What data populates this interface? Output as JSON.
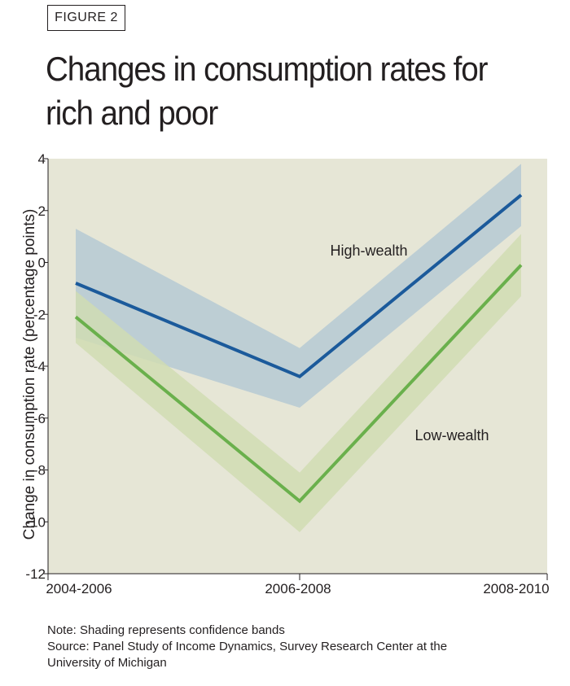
{
  "figure_label": "FIGURE 2",
  "title_lines": [
    "Changes in consumption rates for",
    "rich and poor"
  ],
  "notes": [
    "Note: Shading represents confidence bands",
    "Source: Panel Study of Income Dynamics, Survey Research Center at the",
    "University of Michigan"
  ],
  "chart_data": {
    "type": "line",
    "ylabel": "Change in consumption rate (percentage points)",
    "categories": [
      "2004-2006",
      "2006-2008",
      "2008-2010"
    ],
    "ylim": [
      -12,
      4
    ],
    "yticks": [
      4,
      2,
      0,
      -2,
      -4,
      -6,
      -8,
      -10,
      -12
    ],
    "ytick_labels": [
      "4",
      "2",
      "0",
      "-2",
      "-4",
      "-6",
      "-8",
      "-10",
      "-12"
    ],
    "grid": false,
    "series": [
      {
        "name": "High-wealth",
        "color": "#1b5a9b",
        "band_color": "#b8cbd4",
        "values": [
          -0.8,
          -4.4,
          2.6
        ],
        "lower": [
          -2.9,
          -5.6,
          1.4
        ],
        "upper": [
          1.3,
          -3.3,
          3.8
        ]
      },
      {
        "name": "Low-wealth",
        "color": "#6ab04c",
        "band_color": "#d0dcb3",
        "values": [
          -2.1,
          -9.2,
          -0.1
        ],
        "lower": [
          -3.1,
          -10.4,
          -1.3
        ],
        "upper": [
          -1.1,
          -8.1,
          1.1
        ]
      }
    ],
    "plot_background": "#e6e6d6"
  }
}
